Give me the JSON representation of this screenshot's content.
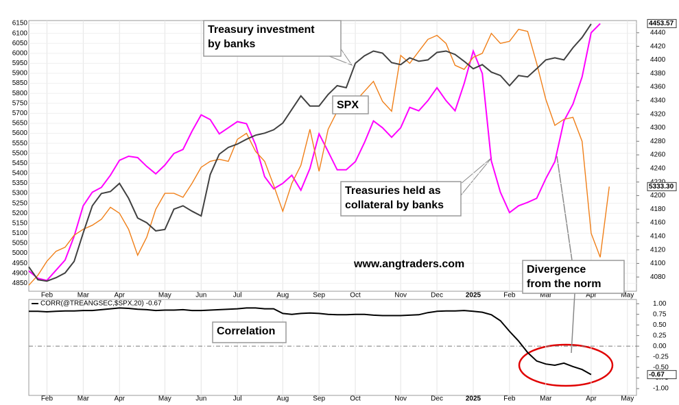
{
  "chart_data": [
    {
      "type": "line",
      "categories": [
        null,
        null,
        "Feb",
        null,
        null,
        null,
        "Mar",
        null,
        null,
        null,
        "Apr",
        null,
        null,
        null,
        null,
        "May",
        null,
        null,
        null,
        "Jun",
        null,
        null,
        null,
        "Jul",
        null,
        null,
        null,
        null,
        "Aug",
        null,
        null,
        null,
        "Sep",
        null,
        null,
        null,
        "Oct",
        null,
        null,
        null,
        null,
        "Nov",
        null,
        null,
        null,
        "Dec",
        null,
        null,
        null,
        "2025",
        null,
        null,
        null,
        "Feb",
        null,
        null,
        null,
        "Mar",
        null,
        null,
        null,
        null,
        "Apr",
        null,
        null,
        null,
        "May",
        null
      ],
      "series": [
        {
          "color": "#ff00ff",
          "axis": "y2",
          "values": [
            4089,
            4078,
            4075,
            4090,
            4105,
            4140,
            4185,
            4205,
            4212,
            4230,
            4252,
            4258,
            4256,
            4243,
            4232,
            4245,
            4262,
            4268,
            4295,
            4319,
            4312,
            4291,
            4300,
            4309,
            4306,
            4275,
            4228,
            4210,
            4218,
            4230,
            4208,
            4240,
            4291,
            4265,
            4238,
            4238,
            4250,
            4278,
            4310,
            4300,
            4286,
            4300,
            4330,
            4325,
            4340,
            4359,
            4340,
            4325,
            4365,
            4413,
            4380,
            4251,
            4205,
            4175,
            4185,
            4190,
            4196,
            4225,
            4250,
            4310,
            4335,
            4375,
            4440,
            4453.57,
            null,
            null,
            null,
            null
          ]
        },
        {
          "color": "#f07f18",
          "values": [
            4840,
            4890,
            4960,
            5010,
            5030,
            5090,
            5120,
            5140,
            5170,
            5230,
            5200,
            5120,
            4990,
            5080,
            5220,
            5300,
            5300,
            5280,
            5350,
            5430,
            5460,
            5470,
            5460,
            5570,
            5600,
            5510,
            5460,
            5340,
            5210,
            5350,
            5440,
            5620,
            5410,
            5620,
            5710,
            5730,
            5760,
            5810,
            5860,
            5760,
            5710,
            5990,
            5950,
            6010,
            6070,
            6090,
            6050,
            5940,
            5920,
            5980,
            6000,
            6100,
            6050,
            6060,
            6120,
            6110,
            5950,
            5770,
            5640,
            5670,
            5680,
            5560,
            5100,
            4980,
            5333.3,
            null,
            null,
            null
          ],
          "value_labels": [
            null,
            null,
            null,
            null,
            null,
            null,
            null,
            null,
            null,
            null,
            null,
            null,
            null,
            null,
            null,
            null,
            null,
            null,
            null,
            null,
            null,
            null,
            null,
            null,
            null,
            null,
            null,
            null,
            null,
            null,
            null,
            null,
            null,
            null,
            null,
            null,
            null,
            null,
            null,
            null,
            null,
            null,
            null,
            null,
            null,
            null,
            null,
            null,
            null,
            null,
            null,
            null,
            null,
            null,
            null,
            null,
            null,
            null,
            null,
            null,
            null,
            null,
            null,
            null,
            "5333.30",
            null,
            null,
            null
          ]
        },
        {
          "color": "#404040",
          "axis": "y2",
          "values": [
            4095,
            4076,
            4074,
            4079,
            4086,
            4103,
            4145,
            4185,
            4203,
            4206,
            4218,
            4196,
            4167,
            4160,
            4148,
            4150,
            4180,
            4185,
            4177,
            4170,
            4231,
            4261,
            4271,
            4276,
            4283,
            4289,
            4292,
            4297,
            4307,
            4327,
            4347,
            4332,
            4332,
            4349,
            4362,
            4359,
            4395,
            4406,
            4413,
            4410,
            4396,
            4393,
            4403,
            4398,
            4400,
            4411,
            4413,
            4408,
            4398,
            4387,
            4393,
            4382,
            4377,
            4362,
            4377,
            4375,
            4387,
            4400,
            4403,
            4400,
            4418,
            4433,
            4453,
            null,
            null,
            null,
            null,
            null
          ]
        }
      ],
      "ylim": [
        4810,
        6164
      ],
      "yticks": [
        6150,
        6100,
        6050,
        6000,
        5950,
        5900,
        5850,
        5800,
        5750,
        5700,
        5650,
        5600,
        5550,
        5500,
        5450,
        5400,
        5350,
        5300,
        5250,
        5200,
        5150,
        5100,
        5050,
        5000,
        4950,
        4900,
        4850
      ],
      "y2lim": [
        4059,
        4458
      ],
      "y2ticks": [
        4440,
        4420,
        4400,
        4380,
        4360,
        4340,
        4320,
        4300,
        4280,
        4260,
        4240,
        4220,
        4200,
        4180,
        4160,
        4140,
        4120,
        4100,
        4080
      ],
      "grid": true,
      "annotations": [
        {
          "lines": [
            "Treasury investment",
            "by banks"
          ]
        },
        {
          "lines": [
            "SPX"
          ]
        },
        {
          "lines": [
            "Treasuries held as",
            "collateral by banks"
          ]
        },
        {
          "lines": [
            "www.angtraders.com"
          ]
        },
        {
          "lines": [
            "Divergence",
            "from the norm"
          ]
        }
      ]
    },
    {
      "type": "line",
      "categories": [
        null,
        null,
        "Feb",
        null,
        null,
        null,
        "Mar",
        null,
        null,
        null,
        "Apr",
        null,
        null,
        null,
        null,
        "May",
        null,
        null,
        null,
        "Jun",
        null,
        null,
        null,
        "Jul",
        null,
        null,
        null,
        null,
        "Aug",
        null,
        null,
        null,
        "Sep",
        null,
        null,
        null,
        "Oct",
        null,
        null,
        null,
        null,
        "Nov",
        null,
        null,
        null,
        "Dec",
        null,
        null,
        null,
        "2025",
        null,
        null,
        null,
        "Feb",
        null,
        null,
        null,
        "Mar",
        null,
        null,
        null,
        null,
        "Apr",
        null,
        null,
        null,
        "May",
        null
      ],
      "series": [
        {
          "name": "CORR(@TREANGSEC,$SPX,20)",
          "color": "#000000",
          "values": [
            0.82,
            0.82,
            0.81,
            0.82,
            0.83,
            0.83,
            0.84,
            0.84,
            0.86,
            0.88,
            0.9,
            0.89,
            0.87,
            0.86,
            0.84,
            0.85,
            0.85,
            0.86,
            0.84,
            0.84,
            0.85,
            0.86,
            0.87,
            0.88,
            0.9,
            0.9,
            0.88,
            0.88,
            0.77,
            0.75,
            0.77,
            0.78,
            0.77,
            0.75,
            0.74,
            0.74,
            0.75,
            0.75,
            0.73,
            0.72,
            0.72,
            0.72,
            0.73,
            0.74,
            0.79,
            0.82,
            0.83,
            0.83,
            0.84,
            0.82,
            0.8,
            0.74,
            0.6,
            0.35,
            0.12,
            -0.15,
            -0.35,
            -0.42,
            -0.45,
            -0.4,
            -0.48,
            -0.55,
            -0.67,
            null,
            null,
            null,
            null,
            null
          ]
        }
      ],
      "ylim": [
        -1.16,
        1.1
      ],
      "yticks": [
        {
          "value": 1,
          "label": "1.00"
        },
        {
          "value": 0.75,
          "label": "0.75"
        },
        {
          "value": 0.5,
          "label": "0.50"
        },
        {
          "value": 0.25,
          "label": "0.25"
        },
        {
          "value": 0,
          "label": "0.00"
        },
        {
          "value": -0.25,
          "label": "-0.25"
        },
        {
          "value": -0.5,
          "label": "-0.50"
        },
        {
          "value": -0.75,
          "label": "-0.75"
        },
        {
          "value": -1,
          "label": "-1.00"
        }
      ],
      "annotations": [
        {
          "lines": [
            "Correlation"
          ]
        }
      ]
    }
  ]
}
